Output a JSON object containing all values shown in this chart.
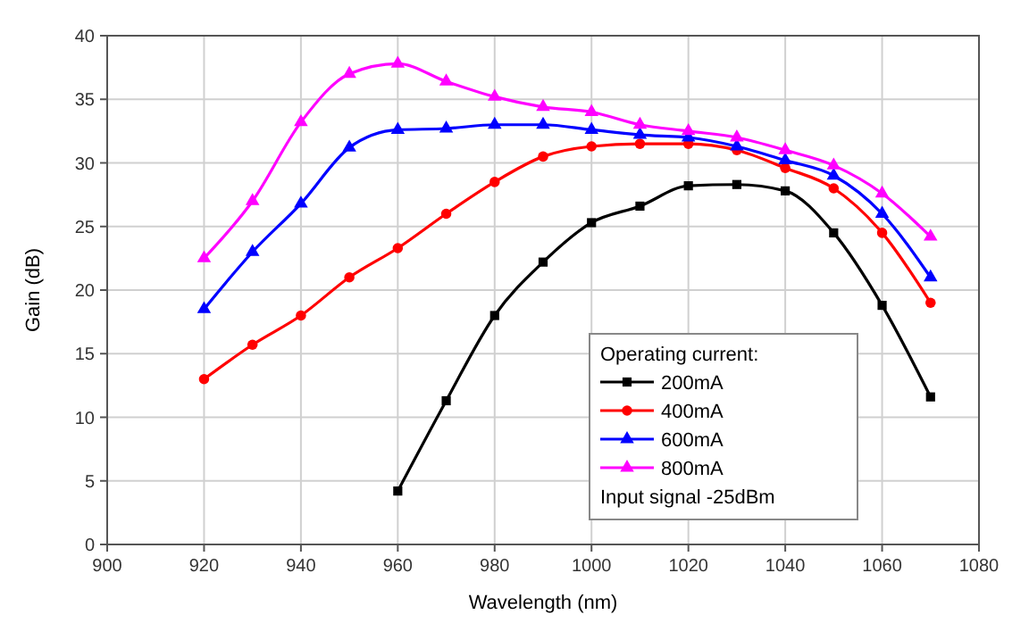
{
  "chart_data": {
    "type": "line",
    "xlabel": "Wavelength (nm)",
    "ylabel": "Gain (dB)",
    "legend_title": "Operating current:",
    "annotations": [
      "Input signal -25dBm"
    ],
    "xlim": [
      900,
      1080
    ],
    "xticks": [
      900,
      920,
      940,
      960,
      980,
      1000,
      1020,
      1040,
      1060,
      1080
    ],
    "ylim": [
      0,
      40
    ],
    "yticks": [
      0,
      5,
      10,
      15,
      20,
      25,
      30,
      35,
      40
    ],
    "grid": true,
    "legend": "bottom right",
    "series": [
      {
        "name": "200mA",
        "color": "#000000",
        "marker": "square",
        "x": [
          960,
          970,
          980,
          990,
          1000,
          1010,
          1020,
          1030,
          1040,
          1050,
          1060,
          1070
        ],
        "values": [
          4.2,
          11.3,
          18,
          22.2,
          25.3,
          26.6,
          28.2,
          28.3,
          27.8,
          24.5,
          18.8,
          11.6
        ]
      },
      {
        "name": "400mA",
        "color": "#ff0000",
        "marker": "circle",
        "x": [
          920,
          930,
          940,
          950,
          960,
          970,
          980,
          990,
          1000,
          1010,
          1020,
          1030,
          1040,
          1050,
          1060,
          1070
        ],
        "values": [
          13,
          15.7,
          18,
          21,
          23.3,
          26,
          28.5,
          30.5,
          31.3,
          31.5,
          31.5,
          31,
          29.6,
          28,
          24.5,
          19
        ]
      },
      {
        "name": "600mA",
        "color": "#0000ff",
        "marker": "triangle",
        "x": [
          920,
          930,
          940,
          950,
          960,
          970,
          980,
          990,
          1000,
          1010,
          1020,
          1030,
          1040,
          1050,
          1060,
          1070
        ],
        "values": [
          18.5,
          23,
          26.8,
          31.2,
          32.6,
          32.7,
          33,
          33,
          32.6,
          32.2,
          32,
          31.3,
          30.2,
          29,
          26,
          21
        ]
      },
      {
        "name": "800mA",
        "color": "#ff00ff",
        "marker": "triangle",
        "x": [
          920,
          930,
          940,
          950,
          960,
          970,
          980,
          990,
          1000,
          1010,
          1020,
          1030,
          1040,
          1050,
          1060,
          1070
        ],
        "values": [
          22.5,
          27,
          33.2,
          37,
          37.8,
          36.4,
          35.2,
          34.4,
          34,
          33,
          32.5,
          32,
          31,
          29.8,
          27.6,
          24.2
        ]
      }
    ]
  }
}
